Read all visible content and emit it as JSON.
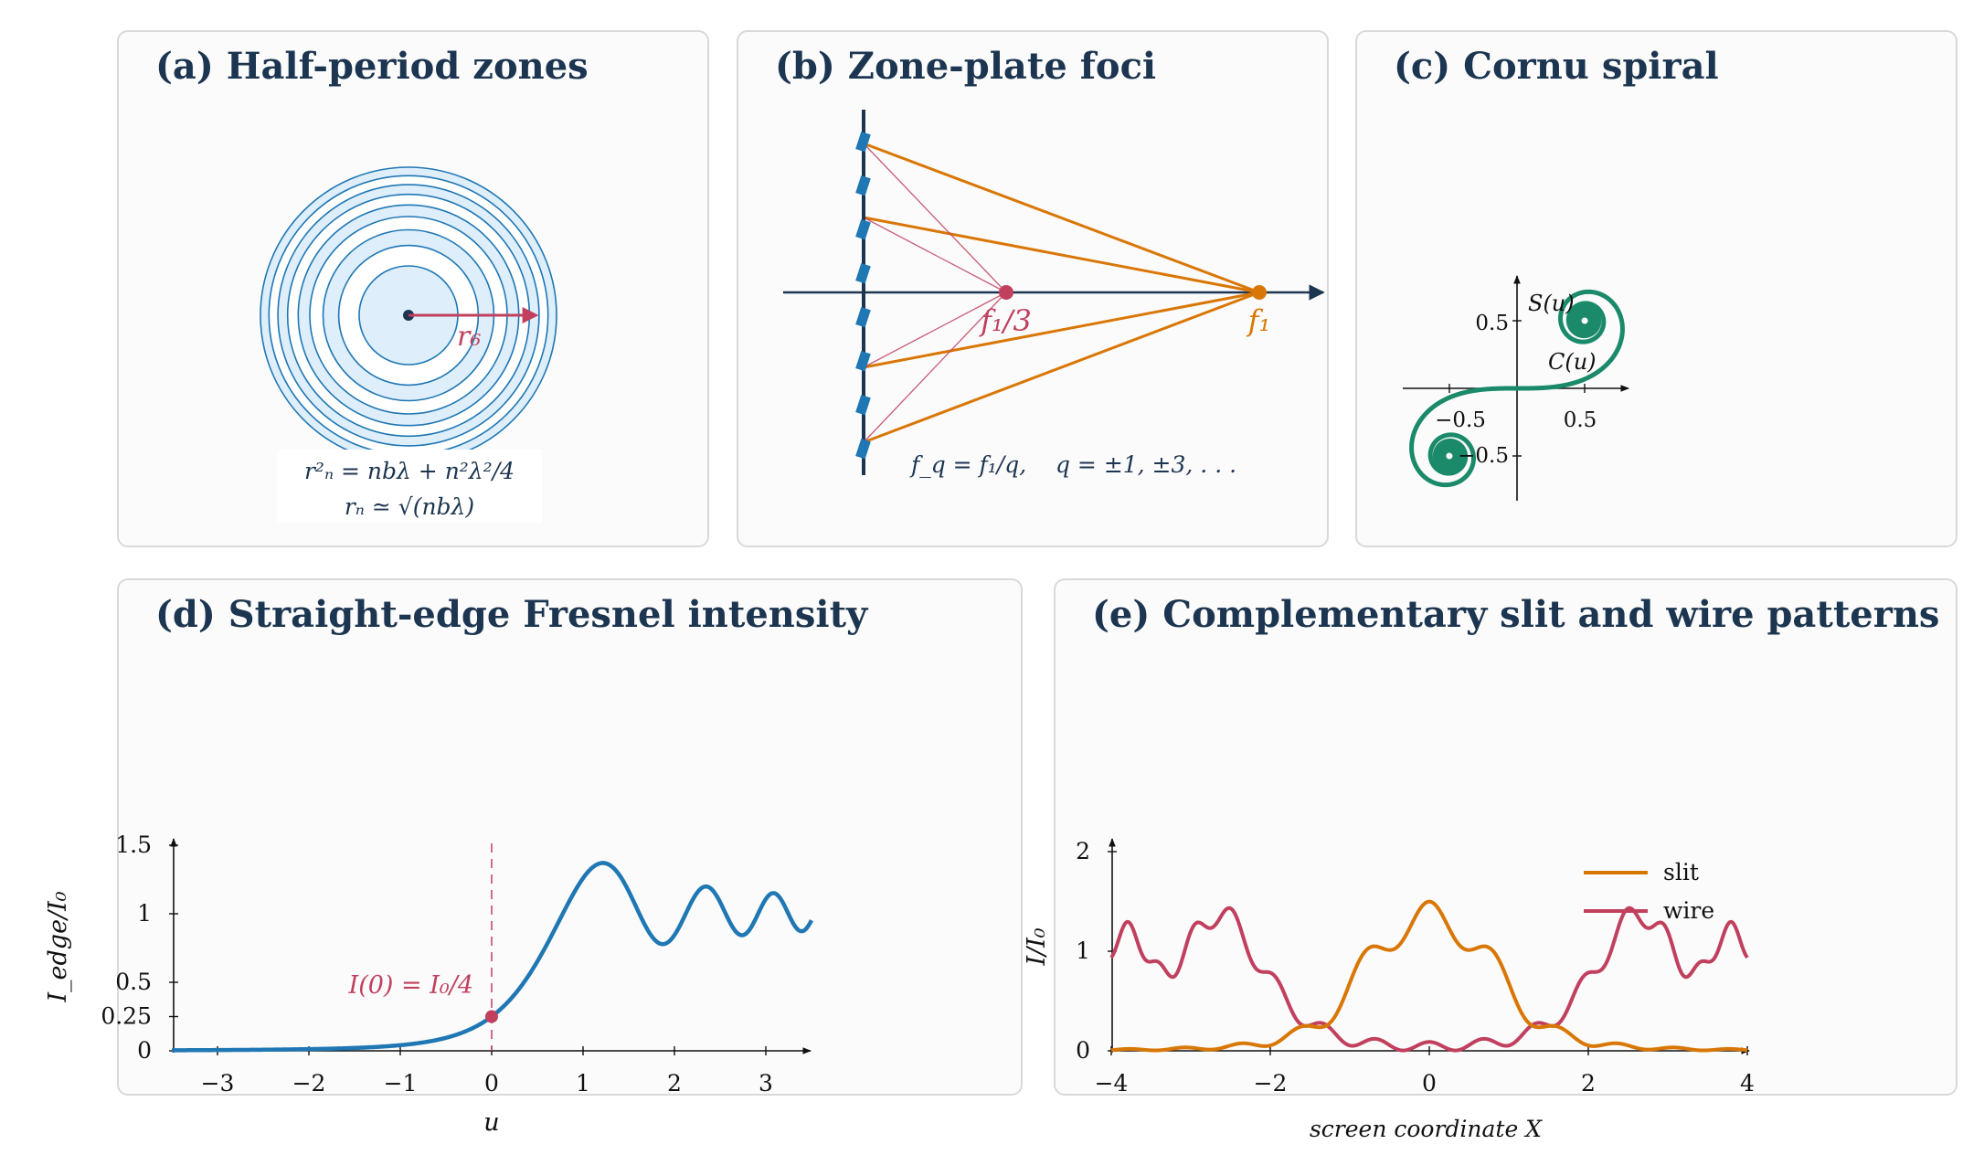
{
  "colors": {
    "navy": "#1c3550",
    "blue": "#1f77b4",
    "zone_fill": "#deeefa",
    "crimson": "#c0405e",
    "orange": "#d97706",
    "teal": "#1b8a6b"
  },
  "panels": {
    "a": {
      "title": "(a) Half-period zones",
      "radius_label": "r₆",
      "zone_count": 9,
      "formula1": "r²ₙ = nbλ + n²λ²/4",
      "formula2": "rₙ ≃ √(nbλ)"
    },
    "b": {
      "title": "(b) Zone-plate foci",
      "focus1_label": "f₁",
      "focus3_label": "f₁/3",
      "formula": "f_q = f₁/q,    q = ±1, ±3, . . ."
    },
    "c": {
      "title": "(c) Cornu spiral",
      "ylabel": "S(u)",
      "xlabel": "C(u)",
      "x_ticks": [
        "−0.5",
        "0.5"
      ],
      "y_ticks": [
        "0.5",
        "−0.5"
      ]
    },
    "d": {
      "title": "(d) Straight-edge Fresnel intensity",
      "xlabel": "u",
      "ylabel": "I_edge/I₀",
      "annotation": "I(0) = I₀/4"
    },
    "e": {
      "title": "(e) Complementary slit and wire patterns",
      "xlabel": "screen coordinate X",
      "ylabel": "I/I₀"
    }
  },
  "chart_data": [
    {
      "id": "edge",
      "type": "line",
      "series": [
        {
          "name": "",
          "function": "straight-edge Fresnel intensity",
          "x_range": [
            -3.5,
            3.5
          ]
        }
      ],
      "xlim": [
        -3.5,
        3.5
      ],
      "ylim": [
        0,
        1.5
      ],
      "x_ticks": [
        -3,
        -2,
        -1,
        0,
        1,
        2,
        3
      ],
      "y_ticks": [
        0,
        0.25,
        0.5,
        1,
        1.5
      ],
      "x_tick_labels": [
        "−3",
        "−2",
        "−1",
        "0",
        "1",
        "2",
        "3"
      ],
      "y_tick_labels": [
        "0",
        "0.25",
        "0.5",
        "1",
        "1.5"
      ],
      "marked_point": {
        "x": 0,
        "y": 0.25
      }
    },
    {
      "id": "slitwire",
      "type": "line",
      "series": [
        {
          "name": "slit",
          "color": "#d97706"
        },
        {
          "name": "wire",
          "color": "#c0405e"
        }
      ],
      "xlim": [
        -4,
        4
      ],
      "ylim": [
        0,
        2
      ],
      "x_ticks": [
        -4,
        -2,
        0,
        2,
        4
      ],
      "y_ticks": [
        0,
        1,
        2
      ],
      "x_tick_labels": [
        "−4",
        "−2",
        "0",
        "2",
        "4"
      ],
      "y_tick_labels": [
        "0",
        "1",
        "2"
      ],
      "legend": "top-right"
    }
  ]
}
